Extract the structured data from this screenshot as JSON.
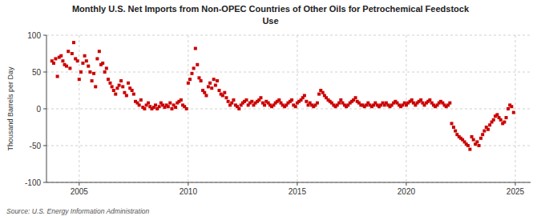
{
  "chart_data": {
    "type": "scatter",
    "title": "Monthly U.S. Net Imports from Non-OPEC Countries of Other Oils for Petrochemical Feedstock",
    "subtitle": "Use",
    "ylabel": "Thousand Barrels per Day",
    "source": "Source: U.S. Energy Information Administration",
    "color": "#cc0000",
    "marker": "square",
    "grid": true,
    "xlim": [
      2003.5,
      2025.7
    ],
    "xticks": [
      2005,
      2010,
      2015,
      2020,
      2025
    ],
    "ylim": [
      -100,
      100
    ],
    "yticks": [
      -100,
      -50,
      0,
      50,
      100
    ],
    "x": [
      2003.75,
      2003.83,
      2003.92,
      2004.0,
      2004.08,
      2004.17,
      2004.25,
      2004.33,
      2004.42,
      2004.5,
      2004.58,
      2004.67,
      2004.75,
      2004.83,
      2004.92,
      2005.0,
      2005.08,
      2005.17,
      2005.25,
      2005.33,
      2005.42,
      2005.5,
      2005.58,
      2005.67,
      2005.75,
      2005.83,
      2005.92,
      2006.0,
      2006.08,
      2006.17,
      2006.25,
      2006.33,
      2006.42,
      2006.5,
      2006.58,
      2006.67,
      2006.75,
      2006.83,
      2006.92,
      2007.0,
      2007.08,
      2007.17,
      2007.25,
      2007.33,
      2007.42,
      2007.5,
      2007.58,
      2007.67,
      2007.75,
      2007.83,
      2007.92,
      2008.0,
      2008.08,
      2008.17,
      2008.25,
      2008.33,
      2008.42,
      2008.5,
      2008.58,
      2008.67,
      2008.75,
      2008.83,
      2008.92,
      2009.0,
      2009.08,
      2009.17,
      2009.25,
      2009.33,
      2009.42,
      2009.5,
      2009.58,
      2009.67,
      2009.75,
      2009.83,
      2009.92,
      2010.0,
      2010.08,
      2010.17,
      2010.25,
      2010.33,
      2010.42,
      2010.5,
      2010.58,
      2010.67,
      2010.75,
      2010.83,
      2010.92,
      2011.0,
      2011.08,
      2011.17,
      2011.25,
      2011.33,
      2011.42,
      2011.5,
      2011.58,
      2011.67,
      2011.75,
      2011.83,
      2011.92,
      2012.0,
      2012.08,
      2012.17,
      2012.25,
      2012.33,
      2012.42,
      2012.5,
      2012.58,
      2012.67,
      2012.75,
      2012.83,
      2012.92,
      2013.0,
      2013.08,
      2013.17,
      2013.25,
      2013.33,
      2013.42,
      2013.5,
      2013.58,
      2013.67,
      2013.75,
      2013.83,
      2013.92,
      2014.0,
      2014.08,
      2014.17,
      2014.25,
      2014.33,
      2014.42,
      2014.5,
      2014.58,
      2014.67,
      2014.75,
      2014.83,
      2014.92,
      2015.0,
      2015.08,
      2015.17,
      2015.25,
      2015.33,
      2015.42,
      2015.5,
      2015.58,
      2015.67,
      2015.75,
      2015.83,
      2015.92,
      2016.0,
      2016.08,
      2016.17,
      2016.25,
      2016.33,
      2016.42,
      2016.5,
      2016.58,
      2016.67,
      2016.75,
      2016.83,
      2016.92,
      2017.0,
      2017.08,
      2017.17,
      2017.25,
      2017.33,
      2017.42,
      2017.5,
      2017.58,
      2017.67,
      2017.75,
      2017.83,
      2017.92,
      2018.0,
      2018.08,
      2018.17,
      2018.25,
      2018.33,
      2018.42,
      2018.5,
      2018.58,
      2018.67,
      2018.75,
      2018.83,
      2018.92,
      2019.0,
      2019.08,
      2019.17,
      2019.25,
      2019.33,
      2019.42,
      2019.5,
      2019.58,
      2019.67,
      2019.75,
      2019.83,
      2019.92,
      2020.0,
      2020.08,
      2020.17,
      2020.25,
      2020.33,
      2020.42,
      2020.5,
      2020.58,
      2020.67,
      2020.75,
      2020.83,
      2020.92,
      2021.0,
      2021.08,
      2021.17,
      2021.25,
      2021.33,
      2021.42,
      2021.5,
      2021.58,
      2021.67,
      2021.75,
      2021.83,
      2021.92,
      2022.0,
      2022.08,
      2022.17,
      2022.25,
      2022.33,
      2022.42,
      2022.5,
      2022.58,
      2022.67,
      2022.75,
      2022.83,
      2022.92,
      2023.0,
      2023.08,
      2023.17,
      2023.25,
      2023.33,
      2023.42,
      2023.5,
      2023.58,
      2023.67,
      2023.75,
      2023.83,
      2023.92,
      2024.0,
      2024.08,
      2024.17,
      2024.25,
      2024.33,
      2024.42,
      2024.5,
      2024.58,
      2024.67,
      2024.75,
      2024.83,
      2024.92
    ],
    "values": [
      65,
      62,
      68,
      44,
      70,
      72,
      65,
      60,
      58,
      78,
      55,
      75,
      90,
      68,
      65,
      40,
      50,
      62,
      72,
      65,
      58,
      50,
      38,
      48,
      30,
      68,
      78,
      60,
      62,
      50,
      55,
      40,
      35,
      30,
      25,
      20,
      28,
      32,
      38,
      30,
      22,
      18,
      35,
      28,
      25,
      20,
      10,
      8,
      5,
      12,
      2,
      0,
      5,
      8,
      3,
      0,
      2,
      5,
      0,
      3,
      8,
      5,
      2,
      5,
      3,
      8,
      0,
      5,
      2,
      8,
      10,
      12,
      5,
      3,
      0,
      35,
      40,
      48,
      55,
      82,
      60,
      42,
      38,
      25,
      22,
      18,
      30,
      35,
      28,
      40,
      32,
      38,
      25,
      20,
      18,
      22,
      15,
      10,
      5,
      8,
      12,
      5,
      3,
      0,
      5,
      8,
      10,
      12,
      5,
      8,
      10,
      5,
      8,
      10,
      12,
      15,
      8,
      5,
      10,
      8,
      5,
      3,
      5,
      8,
      10,
      12,
      8,
      5,
      3,
      5,
      8,
      10,
      12,
      5,
      3,
      8,
      10,
      12,
      15,
      18,
      10,
      5,
      8,
      5,
      3,
      5,
      8,
      20,
      25,
      22,
      18,
      15,
      12,
      10,
      8,
      5,
      3,
      5,
      8,
      12,
      8,
      5,
      3,
      5,
      8,
      10,
      12,
      15,
      10,
      8,
      5,
      5,
      3,
      5,
      8,
      5,
      3,
      5,
      8,
      5,
      3,
      5,
      8,
      5,
      8,
      5,
      3,
      5,
      8,
      10,
      8,
      5,
      3,
      5,
      8,
      5,
      8,
      10,
      12,
      8,
      5,
      8,
      10,
      12,
      8,
      5,
      8,
      10,
      12,
      8,
      5,
      3,
      5,
      8,
      10,
      8,
      5,
      3,
      5,
      8,
      -20,
      -25,
      -30,
      -35,
      -38,
      -40,
      -42,
      -45,
      -48,
      -50,
      -55,
      -38,
      -42,
      -48,
      -45,
      -50,
      -40,
      -35,
      -30,
      -25,
      -28,
      -22,
      -18,
      -15,
      -10,
      -8,
      -12,
      -15,
      -20,
      -18,
      -12,
      0,
      5,
      3,
      -5
    ]
  }
}
